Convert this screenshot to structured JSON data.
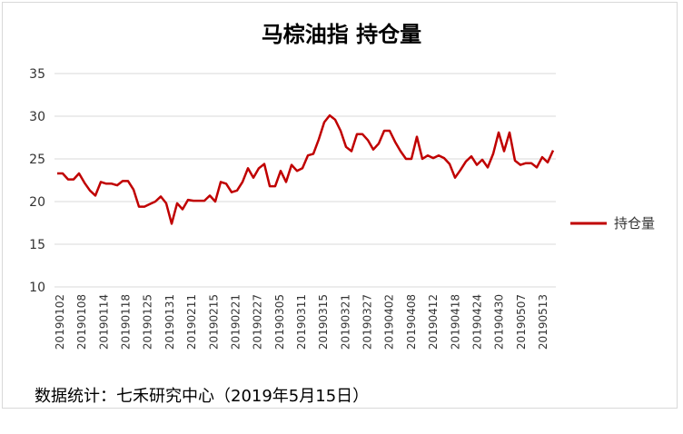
{
  "chart_data": {
    "type": "line",
    "title": "马棕油指 持仓量",
    "xlabel": "",
    "ylabel": "",
    "ylim": [
      10,
      35
    ],
    "yticks": [
      10,
      15,
      20,
      25,
      30,
      35
    ],
    "grid": "horizontal",
    "legend_position": "right",
    "x_tick_labels": [
      "20190102",
      "20190108",
      "20190114",
      "20190118",
      "20190125",
      "20190131",
      "20190211",
      "20190215",
      "20190221",
      "20190227",
      "20190305",
      "20190311",
      "20190315",
      "20190321",
      "20190327",
      "20190402",
      "20190408",
      "20190412",
      "20190418",
      "20190424",
      "20190430",
      "20190507",
      "20190513"
    ],
    "series": [
      {
        "name": "持仓量",
        "color": "#c00000",
        "values": [
          23.3,
          23.3,
          22.6,
          22.6,
          23.3,
          22.2,
          21.3,
          20.7,
          22.3,
          22.1,
          22.1,
          21.9,
          22.4,
          22.4,
          21.4,
          19.4,
          19.4,
          19.7,
          20.0,
          20.6,
          19.8,
          17.4,
          19.8,
          19.1,
          20.2,
          20.1,
          20.1,
          20.1,
          20.7,
          20.0,
          22.3,
          22.1,
          21.1,
          21.3,
          22.3,
          23.9,
          22.8,
          23.9,
          24.4,
          21.8,
          21.8,
          23.6,
          22.3,
          24.3,
          23.6,
          23.9,
          25.4,
          25.6,
          27.3,
          29.3,
          30.1,
          29.6,
          28.3,
          26.4,
          25.9,
          27.9,
          27.9,
          27.2,
          26.1,
          26.8,
          28.3,
          28.3,
          27.0,
          25.9,
          25.0,
          25.0,
          27.6,
          25.0,
          25.4,
          25.1,
          25.4,
          25.1,
          24.4,
          22.8,
          23.7,
          24.7,
          25.3,
          24.3,
          24.9,
          24.0,
          25.6,
          28.1,
          25.9,
          28.1,
          24.8,
          24.3,
          24.5,
          24.5,
          24.0,
          25.2,
          24.6,
          26.0
        ]
      }
    ]
  },
  "footer": {
    "source_text": "数据统计：七禾研究中心（2019年5月15日）"
  }
}
